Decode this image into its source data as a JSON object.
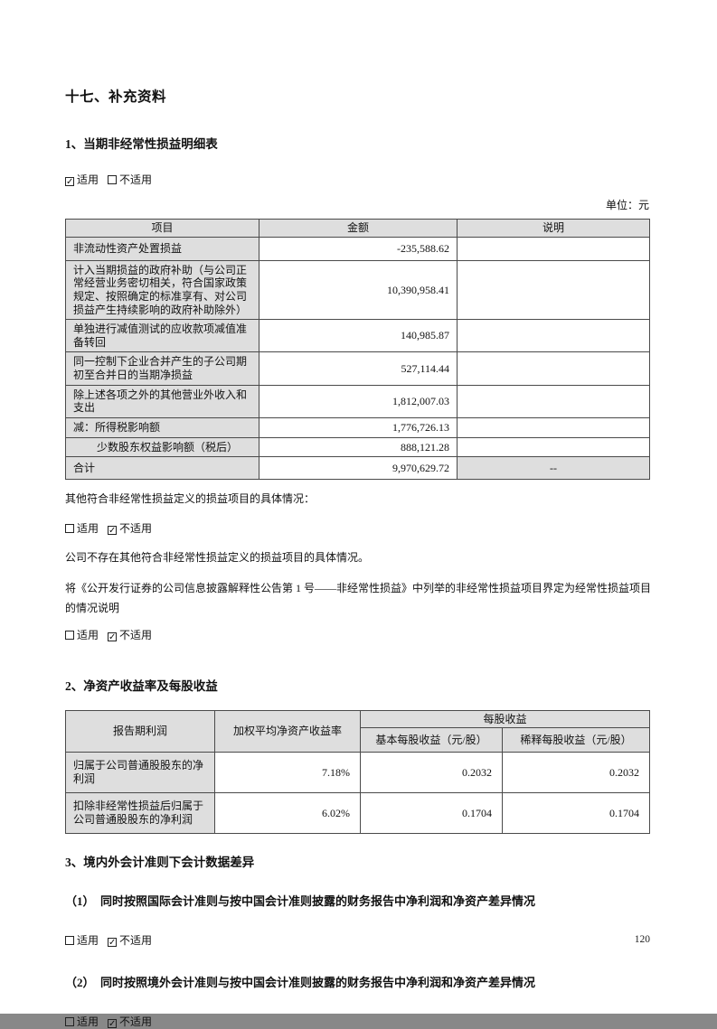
{
  "doc": {
    "section_title": "十七、补充资料",
    "unit_label": "单位：元",
    "page_number": "120"
  },
  "s1": {
    "title": "1、当期非经常性损益明细表",
    "applicability": [
      {
        "label": "适用",
        "checked": true
      },
      {
        "label": "不适用",
        "checked": false
      }
    ],
    "table": {
      "headers": [
        "项目",
        "金额",
        "说明"
      ],
      "rows": [
        {
          "item": "非流动性资产处置损益",
          "amount": "-235,588.62",
          "note": ""
        },
        {
          "item": "计入当期损益的政府补助（与公司正常经营业务密切相关，符合国家政策规定、按照确定的标准享有、对公司损益产生持续影响的政府补助除外）",
          "amount": "10,390,958.41",
          "note": ""
        },
        {
          "item": "单独进行减值测试的应收款项减值准备转回",
          "amount": "140,985.87",
          "note": ""
        },
        {
          "item": "同一控制下企业合并产生的子公司期初至合并日的当期净损益",
          "amount": "527,114.44",
          "note": ""
        },
        {
          "item": "除上述各项之外的其他营业外收入和支出",
          "amount": "1,812,007.03",
          "note": ""
        },
        {
          "item": "减：所得税影响额",
          "amount": "1,776,726.13",
          "note": ""
        },
        {
          "item": "少数股东权益影响额（税后）",
          "amount": "888,121.28",
          "note": ""
        },
        {
          "item": "合计",
          "amount": "9,970,629.72",
          "note": "--"
        }
      ]
    },
    "other_items_heading": "其他符合非经常性损益定义的损益项目的具体情况：",
    "other_items_applicability": [
      {
        "label": "适用",
        "checked": false
      },
      {
        "label": "不适用",
        "checked": true
      }
    ],
    "no_other_items_note": "公司不存在其他符合非经常性损益定义的损益项目的具体情况。",
    "definition_note": "将《公开发行证券的公司信息披露解释性公告第 1 号——非经常性损益》中列举的非经常性损益项目界定为经常性损益项目的情况说明",
    "definition_applicability": [
      {
        "label": "适用",
        "checked": false
      },
      {
        "label": "不适用",
        "checked": true
      }
    ]
  },
  "s2": {
    "title": "2、净资产收益率及每股收益",
    "table": {
      "col_profit": "报告期利润",
      "col_roe": "加权平均净资产收益率",
      "col_eps_group": "每股收益",
      "col_basic": "基本每股收益（元/股）",
      "col_diluted": "稀释每股收益（元/股）",
      "rows": [
        {
          "item": "归属于公司普通股股东的净利润",
          "roe": "7.18%",
          "basic": "0.2032",
          "diluted": "0.2032"
        },
        {
          "item": "扣除非经常性损益后归属于公司普通股股东的净利润",
          "roe": "6.02%",
          "basic": "0.1704",
          "diluted": "0.1704"
        }
      ]
    }
  },
  "s3": {
    "title": "3、境内外会计准则下会计数据差异",
    "sub1_title": "（1）　同时按照国际会计准则与按中国会计准则披露的财务报告中净利润和净资产差异情况",
    "sub1_applicability": [
      {
        "label": "适用",
        "checked": false
      },
      {
        "label": "不适用",
        "checked": true
      }
    ],
    "sub2_title": "（2）　同时按照境外会计准则与按中国会计准则披露的财务报告中净利润和净资产差异情况",
    "sub2_applicability": [
      {
        "label": "适用",
        "checked": false
      },
      {
        "label": "不适用",
        "checked": true
      }
    ]
  }
}
